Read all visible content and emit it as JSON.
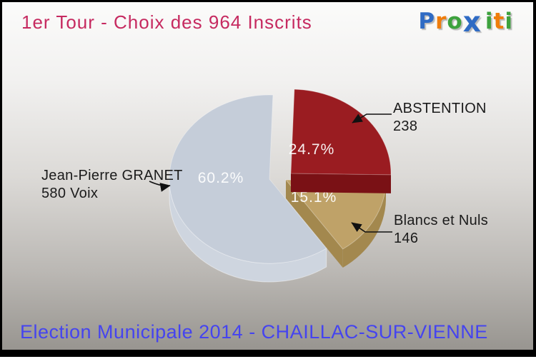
{
  "header": {
    "title": "1er Tour - Choix des 964 Inscrits",
    "title_color": "#c62a60",
    "logo": {
      "name": "Proxiti",
      "letters": [
        {
          "ch": "P",
          "color": "#2f6bc4"
        },
        {
          "ch": "r",
          "color": "#ef7d0c"
        },
        {
          "ch": "o",
          "color": "#3da23d"
        },
        {
          "ch": "x",
          "color": "#2f6bc4",
          "big": true
        },
        {
          "ch": "i",
          "color": "#3da23d",
          "gap": true
        },
        {
          "ch": "t",
          "color": "#ef7d0c"
        },
        {
          "ch": "i",
          "color": "#3da23d"
        }
      ]
    }
  },
  "footer": {
    "caption": "Election Municipale 2014 - CHAILLAC-SUR-VIENNE",
    "caption_color": "#4544ef"
  },
  "chart_data": {
    "type": "pie",
    "style": "3d-exploded",
    "title": "1er Tour - Choix des 964 Inscrits",
    "total_inscrits": 964,
    "legend_position": "callouts",
    "slices": [
      {
        "label": "ABSTENTION",
        "value": 238,
        "pct": 24.7,
        "pct_label": "24.7%",
        "color": "#9a1c21",
        "side_color": "#7a1115",
        "callout": [
          "ABSTENTION",
          "238"
        ]
      },
      {
        "label": "Blancs et Nuls",
        "value": 146,
        "pct": 15.1,
        "pct_label": "15.1%",
        "color": "#bfa268",
        "side_color": "#a3884e",
        "callout": [
          "Blancs et Nuls",
          "146"
        ]
      },
      {
        "label": "Jean-Pierre GRANET",
        "value": 580,
        "pct": 60.2,
        "pct_label": "60.2%",
        "color": "#c5cdd9",
        "side_color": "#ced5df",
        "callout": [
          "Jean-Pierre GRANET",
          "580 Voix"
        ]
      }
    ]
  }
}
